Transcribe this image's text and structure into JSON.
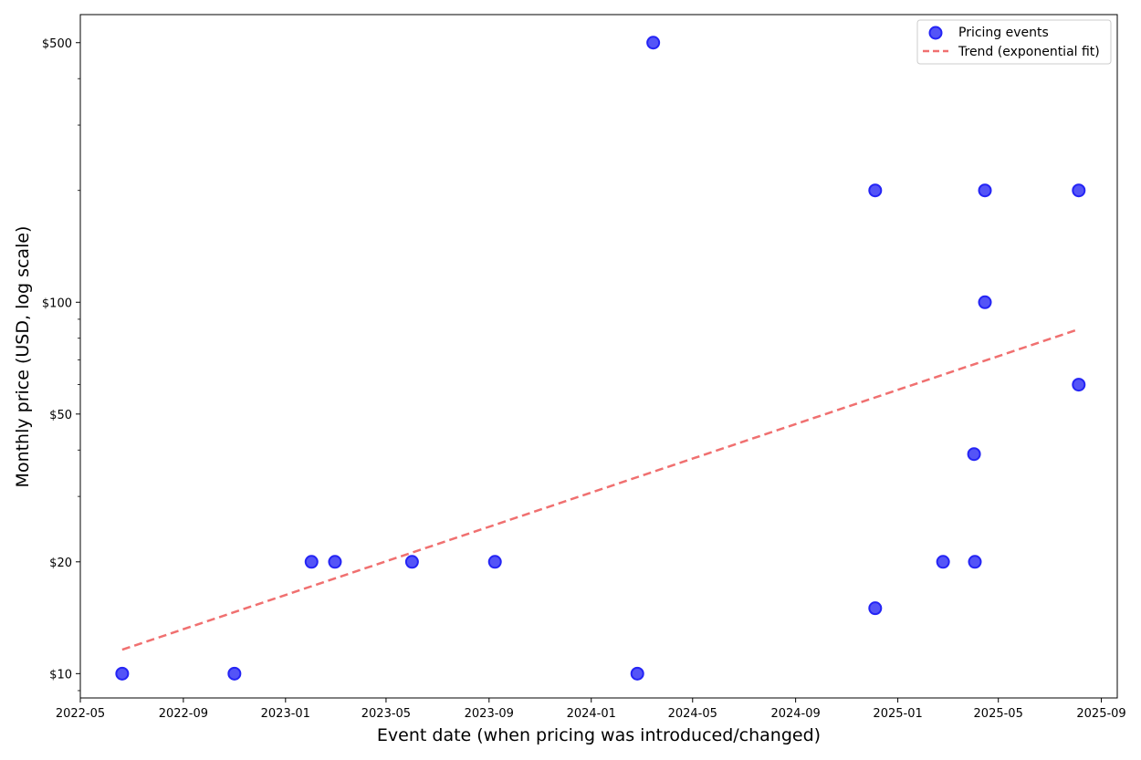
{
  "chart_data": {
    "type": "scatter",
    "xlabel": "Event date (when pricing was introduced/changed)",
    "ylabel": "Monthly price (USD, log scale)",
    "x_scale": "date",
    "y_scale": "log",
    "xlim": [
      "2022-05-01",
      "2025-09-20"
    ],
    "ylim": [
      8.6,
      595
    ],
    "x_ticks": [
      "2022-05",
      "2022-09",
      "2023-01",
      "2023-05",
      "2023-09",
      "2024-01",
      "2024-05",
      "2024-09",
      "2025-01",
      "2025-05",
      "2025-09"
    ],
    "y_ticks": [
      {
        "value": 10,
        "label": "$10"
      },
      {
        "value": 20,
        "label": "$20"
      },
      {
        "value": 50,
        "label": "$50"
      },
      {
        "value": 100,
        "label": "$100"
      },
      {
        "value": 500,
        "label": "$500"
      }
    ],
    "series": [
      {
        "name": "Pricing events",
        "kind": "scatter",
        "color": "#2424f5",
        "points": [
          {
            "x": "2022-06-20",
            "y": 10
          },
          {
            "x": "2022-11-01",
            "y": 10
          },
          {
            "x": "2023-02-01",
            "y": 20
          },
          {
            "x": "2023-03-01",
            "y": 20
          },
          {
            "x": "2023-06-01",
            "y": 20
          },
          {
            "x": "2023-09-08",
            "y": 20
          },
          {
            "x": "2024-02-25",
            "y": 10
          },
          {
            "x": "2024-03-15",
            "y": 500
          },
          {
            "x": "2024-12-05",
            "y": 200
          },
          {
            "x": "2024-12-05",
            "y": 15
          },
          {
            "x": "2025-02-24",
            "y": 20
          },
          {
            "x": "2025-04-03",
            "y": 20
          },
          {
            "x": "2025-04-02",
            "y": 39
          },
          {
            "x": "2025-04-15",
            "y": 200
          },
          {
            "x": "2025-04-15",
            "y": 100
          },
          {
            "x": "2025-08-05",
            "y": 200
          },
          {
            "x": "2025-08-05",
            "y": 60
          }
        ]
      },
      {
        "name": "Trend (exponential fit)",
        "kind": "line",
        "style": "dashed",
        "color": "#f07070",
        "points": [
          {
            "x": "2022-06-20",
            "y": 11.6
          },
          {
            "x": "2025-08-01",
            "y": 84
          }
        ]
      }
    ],
    "legend": {
      "position": "top-right"
    },
    "grid": false
  }
}
